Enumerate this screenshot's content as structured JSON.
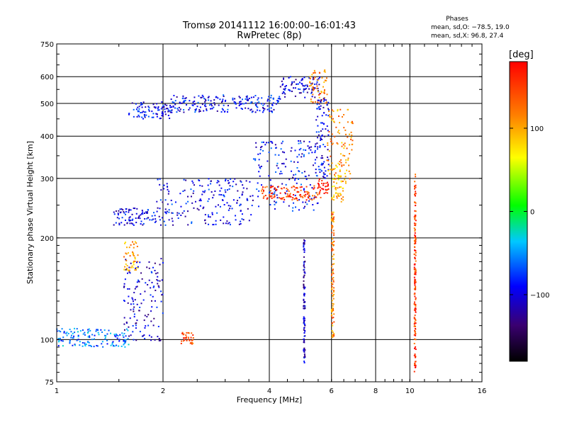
{
  "chart_data": {
    "type": "scatter",
    "title": "Tromsø 20141112 16:00:00–16:01:43",
    "subtitle": "RwPretec (8p)",
    "xlabel": "Frequency [MHz]",
    "ylabel": "Stationary phase Virtual Height [km]",
    "x_scale": "log",
    "y_scale": "log",
    "xlim": [
      1,
      16
    ],
    "ylim": [
      75,
      750
    ],
    "x_ticks": [
      1,
      2,
      4,
      6,
      8,
      10,
      16
    ],
    "y_ticks": [
      75,
      100,
      200,
      300,
      400,
      500,
      600,
      750
    ],
    "grid": true,
    "legend_block": {
      "title": "Phases",
      "lines": [
        "mean, sd,O:  −78.5, 19.0",
        "mean, sd,X:   96.8, 27.4"
      ],
      "position": "top-right"
    },
    "colorbar": {
      "label": "[deg]",
      "range": [
        -180,
        180
      ],
      "ticks": [
        100,
        0,
        -100
      ],
      "colormap": "rainbow (black→purple→blue→cyan→green→yellow→orange→red)"
    },
    "series": [
      {
        "segments": [
          {
            "f1": 1.6,
            "f2": 2.1,
            "hmin": 450,
            "hmax": 505,
            "phase": -95
          },
          {
            "f1": 2.1,
            "f2": 4.3,
            "hmin": 470,
            "hmax": 530,
            "phase": -92
          },
          {
            "f1": 4.3,
            "f2": 5.6,
            "hmin": 520,
            "hmax": 600,
            "phase": -100
          },
          {
            "f1": 5.2,
            "f2": 5.85,
            "hmin": 500,
            "hmax": 630,
            "phase": 120
          },
          {
            "f1": 1.45,
            "f2": 1.9,
            "hmin": 218,
            "hmax": 245,
            "phase": -100
          },
          {
            "f1": 1.9,
            "f2": 3.6,
            "hmin": 218,
            "hmax": 300,
            "phase": -95
          },
          {
            "f1": 3.6,
            "f2": 5.5,
            "hmin": 240,
            "hmax": 390,
            "phase": -90
          },
          {
            "f1": 5.4,
            "f2": 5.9,
            "hmin": 300,
            "hmax": 520,
            "phase": -95
          },
          {
            "f1": 3.8,
            "f2": 5.6,
            "hmin": 258,
            "hmax": 285,
            "phase": 150
          },
          {
            "f1": 5.5,
            "f2": 5.9,
            "hmin": 270,
            "hmax": 300,
            "phase": 170
          },
          {
            "f1": 5.8,
            "f2": 6.9,
            "hmin": 290,
            "hmax": 480,
            "phase": 110
          },
          {
            "f1": 6.0,
            "f2": 6.5,
            "hmin": 255,
            "hmax": 330,
            "phase": 95
          },
          {
            "f1": 1.55,
            "f2": 1.7,
            "hmin": 160,
            "hmax": 195,
            "phase": 100
          },
          {
            "f1": 1.55,
            "f2": 2.0,
            "hmin": 98,
            "hmax": 175,
            "phase": -105
          },
          {
            "f1": 1.0,
            "f2": 1.6,
            "hmin": 95,
            "hmax": 108,
            "phase": -60
          },
          {
            "f1": 2.25,
            "f2": 2.45,
            "hmin": 97,
            "hmax": 105,
            "phase": 140
          },
          {
            "f1": 10.3,
            "f2": 10.4,
            "hmin": 80,
            "hmax": 310,
            "phase": 150
          },
          {
            "f1": 5.0,
            "f2": 5.05,
            "hmin": 85,
            "hmax": 200,
            "phase": -110
          },
          {
            "f1": 6.0,
            "f2": 6.1,
            "hmin": 100,
            "hmax": 240,
            "phase": 115
          }
        ]
      }
    ]
  }
}
